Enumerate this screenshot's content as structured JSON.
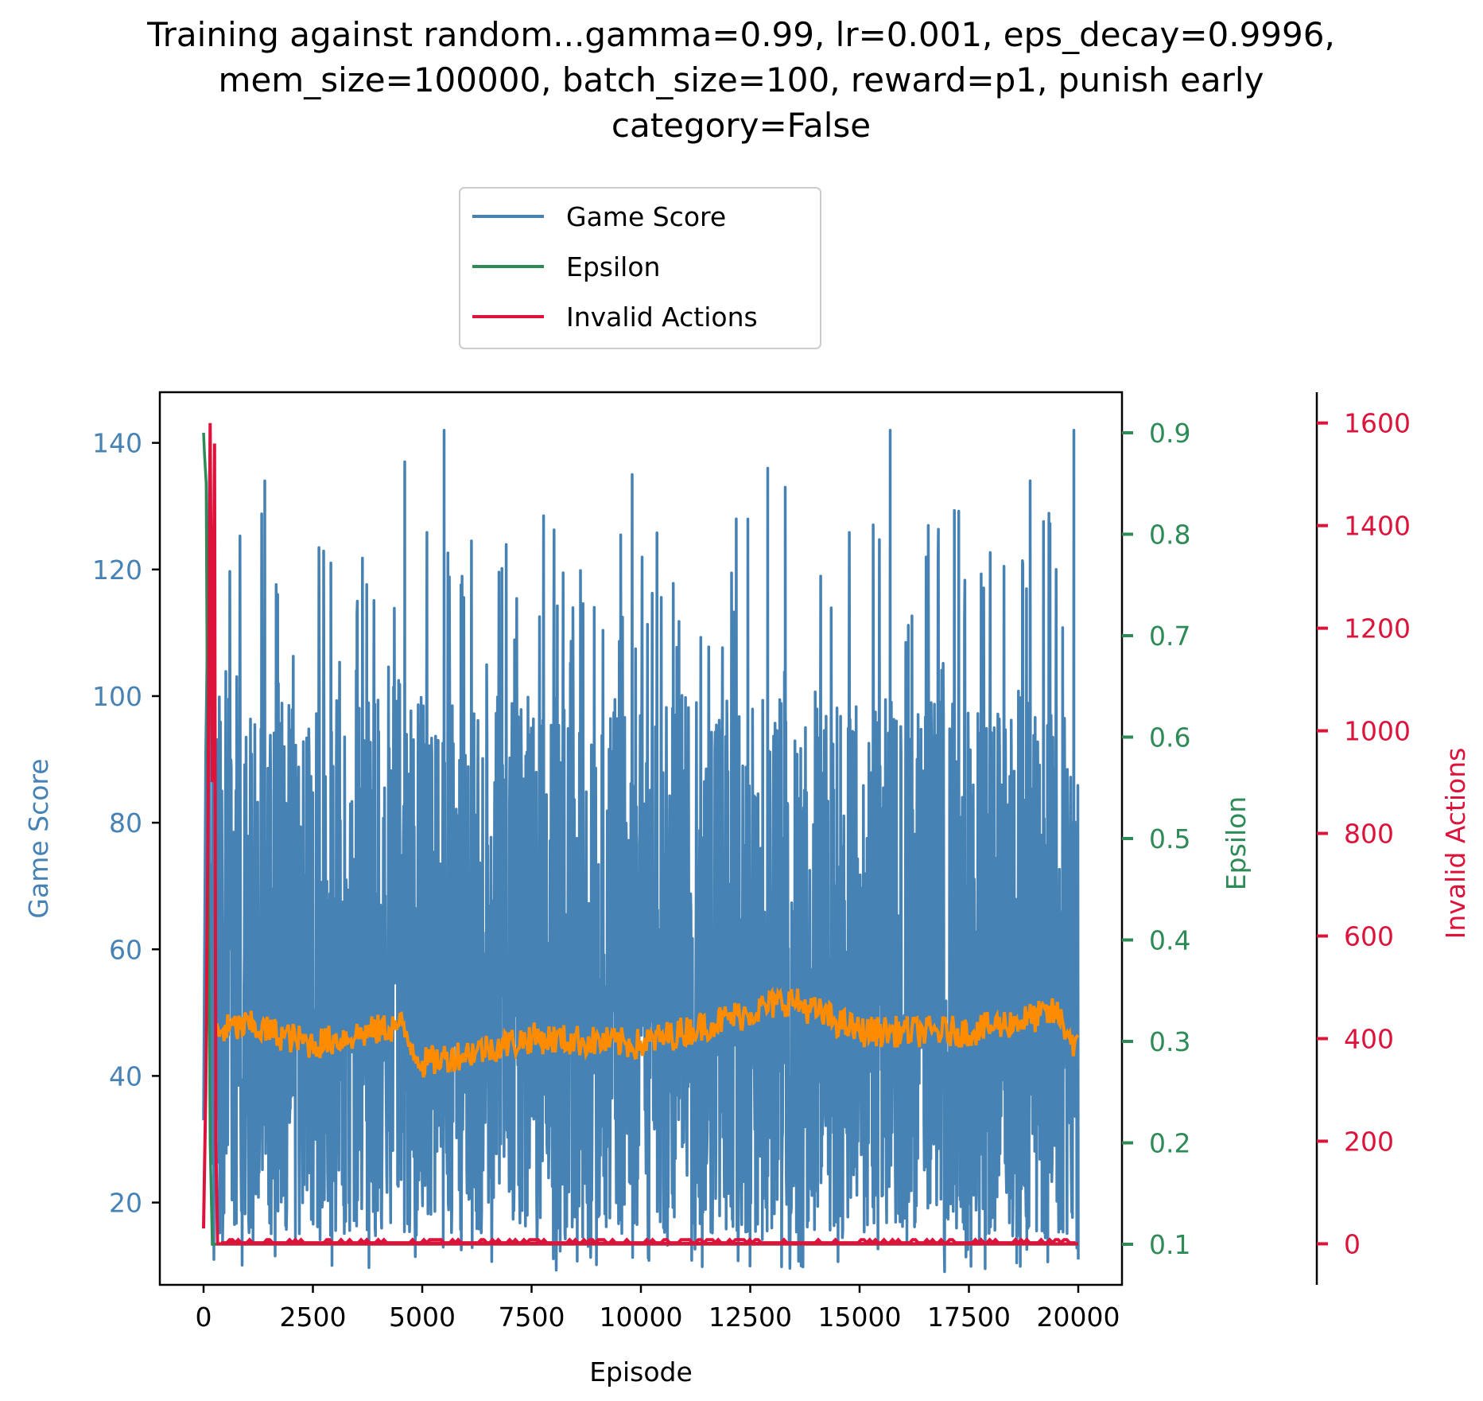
{
  "chart_data": {
    "type": "line",
    "title_lines": [
      "Training against random...gamma=0.99, lr=0.001, eps_decay=0.9996,",
      "mem_size=100000, batch_size=100, reward=p1, punish early",
      "category=False"
    ],
    "xlabel": "Episode",
    "x_range": [
      0,
      20000
    ],
    "x_ticks": [
      0,
      2500,
      5000,
      7500,
      10000,
      12500,
      15000,
      17500,
      20000
    ],
    "axes": {
      "left": {
        "label": "Game Score",
        "color": "#4682b4",
        "range": [
          7,
          148
        ],
        "ticks": [
          20,
          40,
          60,
          80,
          100,
          120,
          140
        ]
      },
      "right": {
        "label": "Epsilon",
        "color": "#2e8b57",
        "range": [
          0.06,
          0.94
        ],
        "ticks": [
          0.1,
          0.2,
          0.3,
          0.4,
          0.5,
          0.6,
          0.7,
          0.8,
          0.9
        ]
      },
      "right2": {
        "label": "Invalid Actions",
        "color": "#dc143c",
        "range": [
          -80,
          1660
        ],
        "ticks": [
          0,
          200,
          400,
          600,
          800,
          1000,
          1200,
          1400,
          1600
        ]
      }
    },
    "legend": {
      "placement": "top-center-above",
      "entries": [
        {
          "label": "Game Score",
          "color": "#4682b4"
        },
        {
          "label": "Epsilon",
          "color": "#2e8b57"
        },
        {
          "label": "Invalid Actions",
          "color": "#dc143c"
        }
      ]
    },
    "series": [
      {
        "name": "Game Score",
        "axis": "left",
        "color": "#4682b4",
        "description_points": {
          "x": [
            0,
            50,
            150,
            5500,
            15700,
            19900,
            20000
          ],
          "y": [
            33,
            91,
            142,
            142,
            142,
            142,
            11
          ]
        },
        "typical_min": 15,
        "typical_max": 100
      },
      {
        "name": "Epsilon",
        "axis": "right",
        "color": "#2e8b57",
        "x": [
          0,
          20,
          60,
          100,
          150,
          200,
          20000
        ],
        "y": [
          0.9,
          0.88,
          0.85,
          0.5,
          0.2,
          0.1,
          0.1
        ]
      },
      {
        "name": "Invalid Actions",
        "axis": "right2",
        "color": "#dc143c",
        "x": [
          0,
          50,
          100,
          150,
          200,
          250,
          280,
          320,
          20000
        ],
        "y": [
          30,
          300,
          800,
          1600,
          900,
          1560,
          200,
          0,
          0
        ]
      }
    ],
    "moving_average": {
      "axis": "left",
      "color": "#ff8c00",
      "x": [
        300,
        1000,
        2500,
        4500,
        5000,
        7500,
        10000,
        13400,
        15000,
        17500,
        19500,
        20000
      ],
      "y": [
        47,
        48,
        45,
        48,
        42,
        46,
        45,
        52,
        47,
        47,
        50,
        44
      ]
    }
  }
}
